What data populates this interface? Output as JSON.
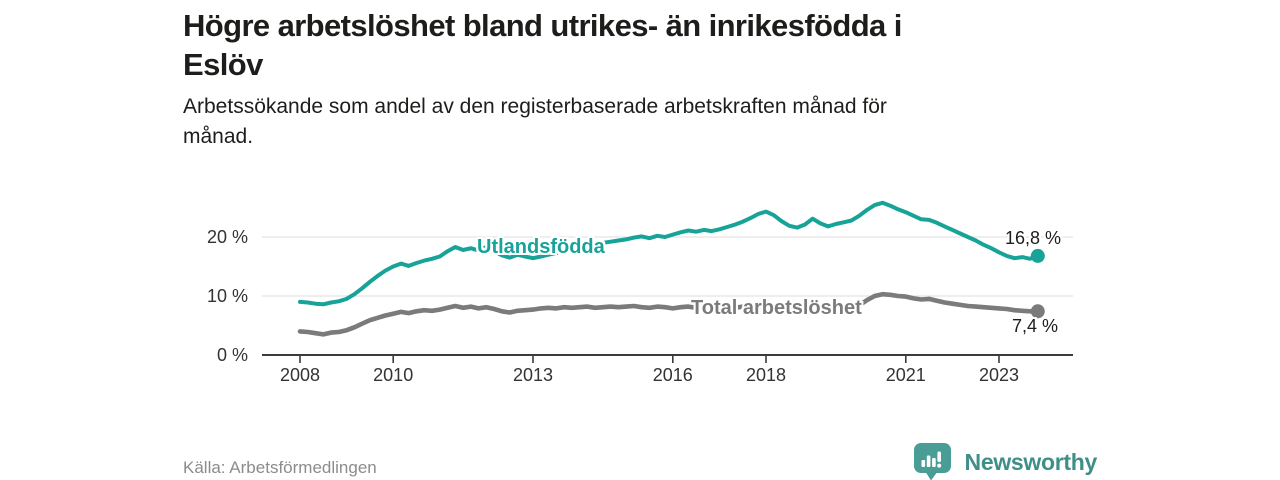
{
  "header": {
    "title": "Högre arbetslöshet bland utrikes- än inrikesfödda i\nEslöv",
    "subtitle": "Arbetssökande som andel av den registerbaserade arbetskraften månad för\nmånad."
  },
  "chart_data": {
    "type": "line",
    "title": "Högre arbetslöshet bland utrikes- än inrikesfödda i Eslöv",
    "subtitle": "Arbetssökande som andel av den registerbaserade arbetskraften månad för månad.",
    "x_unit": "year-month",
    "x_start": "2008-01",
    "x_end": "2023-11",
    "x_interval_months": 2,
    "x_ticks": [
      2008,
      2010,
      2013,
      2016,
      2018,
      2021,
      2023
    ],
    "y_ticks": [
      0,
      10,
      20
    ],
    "y_tick_suffix": " %",
    "ylim": [
      0,
      27.5
    ],
    "xlim": [
      2007.2,
      2024.6
    ],
    "grid": "horizontal-only",
    "legend_position": "inline-labels",
    "series": [
      {
        "name": "Utlandsfödda",
        "color": "#17a398",
        "end_value": 16.8,
        "end_label": "16,8 %",
        "values": [
          9.0,
          8.9,
          8.7,
          8.6,
          8.9,
          9.1,
          9.5,
          10.3,
          11.3,
          12.4,
          13.4,
          14.3,
          15.0,
          15.5,
          15.1,
          15.6,
          16.0,
          16.3,
          16.7,
          17.6,
          18.3,
          17.8,
          18.1,
          17.7,
          18.3,
          17.6,
          16.9,
          16.5,
          17.0,
          16.7,
          16.4,
          16.7,
          17.0,
          17.3,
          17.6,
          17.9,
          18.2,
          18.5,
          18.7,
          19.0,
          19.2,
          19.4,
          19.6,
          19.9,
          20.1,
          19.8,
          20.2,
          20.0,
          20.4,
          20.8,
          21.1,
          20.9,
          21.2,
          21.0,
          21.3,
          21.7,
          22.1,
          22.6,
          23.2,
          23.9,
          24.3,
          23.7,
          22.7,
          21.9,
          21.6,
          22.1,
          23.1,
          22.3,
          21.8,
          22.2,
          22.5,
          22.8,
          23.6,
          24.6,
          25.4,
          25.8,
          25.3,
          24.7,
          24.2,
          23.6,
          23.0,
          22.9,
          22.4,
          21.8,
          21.2,
          20.6,
          20.0,
          19.4,
          18.7,
          18.1,
          17.4,
          16.8,
          16.4,
          16.6,
          16.3,
          16.8
        ]
      },
      {
        "name": "Total arbetslöshet",
        "color": "#7b7b7b",
        "end_value": 7.4,
        "end_label": "7,4 %",
        "values": [
          4.0,
          3.9,
          3.7,
          3.5,
          3.8,
          3.9,
          4.2,
          4.7,
          5.3,
          5.9,
          6.3,
          6.7,
          7.0,
          7.3,
          7.1,
          7.4,
          7.6,
          7.5,
          7.7,
          8.0,
          8.3,
          8.0,
          8.2,
          7.9,
          8.1,
          7.8,
          7.4,
          7.2,
          7.5,
          7.6,
          7.7,
          7.9,
          8.0,
          7.9,
          8.1,
          8.0,
          8.1,
          8.2,
          8.0,
          8.1,
          8.2,
          8.1,
          8.2,
          8.3,
          8.1,
          8.0,
          8.2,
          8.1,
          7.9,
          8.1,
          8.2,
          8.0,
          8.1,
          8.0,
          8.1,
          7.9,
          8.0,
          8.2,
          8.1,
          8.3,
          8.2,
          8.0,
          7.8,
          7.7,
          7.9,
          7.8,
          8.0,
          7.9,
          7.7,
          7.8,
          7.9,
          8.1,
          8.4,
          9.3,
          10.0,
          10.3,
          10.2,
          10.0,
          9.9,
          9.6,
          9.4,
          9.5,
          9.2,
          8.9,
          8.7,
          8.5,
          8.3,
          8.2,
          8.1,
          8.0,
          7.9,
          7.8,
          7.6,
          7.5,
          7.4,
          7.4
        ]
      }
    ]
  },
  "footer": {
    "source": "Källa: Arbetsförmedlingen",
    "brand": "Newsworthy"
  },
  "colors": {
    "accent_teal": "#17a398",
    "series_gray": "#7b7b7b",
    "grid": "#e3e3e3",
    "axis": "#3b3b3b",
    "text_dark": "#1d1d1b",
    "text_muted": "#8c8c8c",
    "logo_icon": "#4a9d97",
    "logo_text": "#3f8e88"
  }
}
